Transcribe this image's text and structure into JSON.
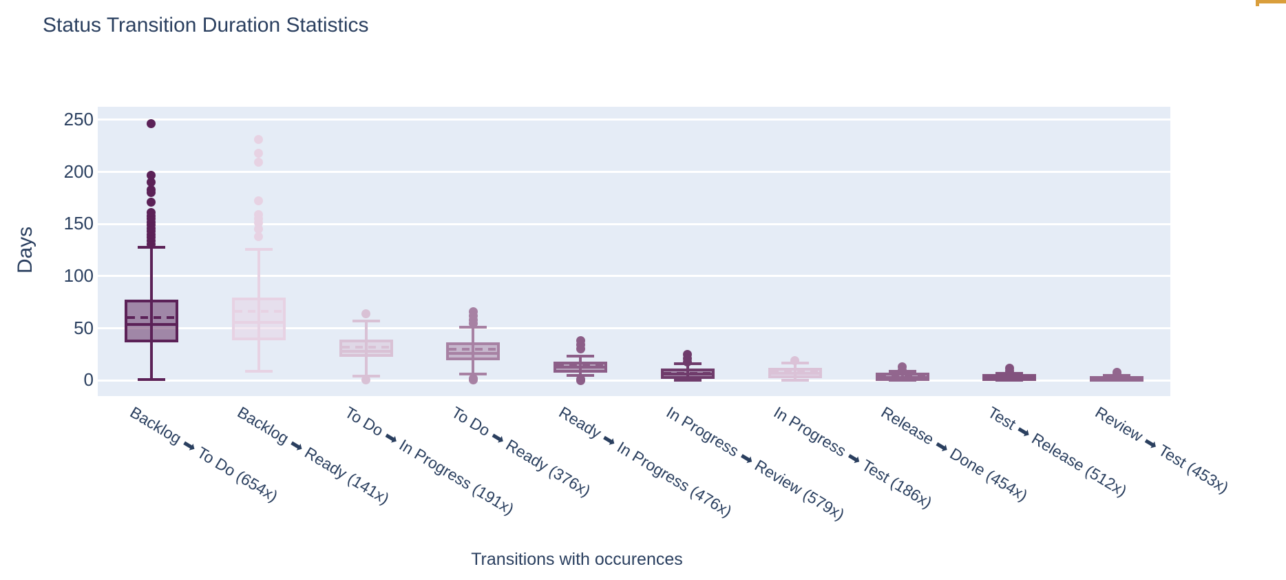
{
  "page": {
    "background": "#ffffff"
  },
  "decoration": {
    "orange_corner_color": "#d99e3c"
  },
  "chart_data": {
    "type": "box",
    "title": "Status Transition Duration Statistics",
    "xlabel": "Transitions with occurences",
    "ylabel": "Days",
    "yticks": [
      0,
      50,
      100,
      150,
      200,
      250
    ],
    "ylim": [
      -15,
      262.5
    ],
    "grid": true,
    "legend": "none",
    "plot_bg": "#e5ecf6",
    "grid_color": "#ffffff",
    "font_color": "#2a3f5f",
    "fill_alpha": 0.5,
    "arrow_glyph": "➡",
    "series": [
      {
        "label": "Backlog ➡ To Do (654x)",
        "from": "Backlog",
        "to": "To Do",
        "occurrences": 654,
        "color": "#5b2157",
        "whisker_low": 1,
        "q1": 38,
        "median": 54,
        "mean": 60,
        "q3": 76,
        "whisker_high": 128,
        "outliers": [
          131,
          134,
          137,
          140,
          143,
          146,
          149,
          152,
          155,
          158,
          161,
          171,
          180,
          183,
          190,
          197,
          246
        ]
      },
      {
        "label": "Backlog ➡ Ready (141x)",
        "from": "Backlog",
        "to": "Ready",
        "occurrences": 141,
        "color": "#e7d2e3",
        "whisker_low": 9,
        "q1": 40,
        "median": 56,
        "mean": 66,
        "q3": 78,
        "whisker_high": 126,
        "outliers": [
          138,
          145,
          151,
          155,
          159,
          172,
          209,
          218,
          231
        ]
      },
      {
        "label": "To Do ➡ In Progress (191x)",
        "from": "To Do",
        "to": "In Progress",
        "occurrences": 191,
        "color": "#d9c1d5",
        "whisker_low": 4,
        "q1": 24,
        "median": 28,
        "mean": 32,
        "q3": 38,
        "whisker_high": 57,
        "outliers": [
          64,
          0.5
        ]
      },
      {
        "label": "To Do ➡ Ready (376x)",
        "from": "To Do",
        "to": "Ready",
        "occurrences": 376,
        "color": "#a781a3",
        "whisker_low": 6,
        "q1": 21,
        "median": 26,
        "mean": 30,
        "q3": 35,
        "whisker_high": 51,
        "outliers": [
          66,
          62,
          58,
          55,
          2,
          0.5
        ]
      },
      {
        "label": "Ready ➡ In Progress (476x)",
        "from": "Ready",
        "to": "In Progress",
        "occurrences": 476,
        "color": "#8c5e88",
        "whisker_low": 5,
        "q1": 9,
        "median": 13,
        "mean": 14,
        "q3": 17,
        "whisker_high": 23,
        "outliers": [
          38,
          34,
          30,
          1,
          0
        ]
      },
      {
        "label": "In Progress ➡ Review (579x)",
        "from": "In Progress",
        "to": "Review",
        "occurrences": 579,
        "color": "#6f3b6b",
        "whisker_low": 0,
        "q1": 3,
        "median": 6,
        "mean": 7,
        "q3": 10,
        "whisker_high": 16,
        "outliers": [
          25,
          21,
          18
        ]
      },
      {
        "label": "In Progress ➡ Test (186x)",
        "from": "In Progress",
        "to": "Test",
        "occurrences": 186,
        "color": "#dbc2d7",
        "whisker_low": 0,
        "q1": 3.5,
        "median": 7,
        "mean": 8,
        "q3": 11,
        "whisker_high": 16.5,
        "outliers": [
          19
        ]
      },
      {
        "label": "Release ➡ Done (454x)",
        "from": "Release",
        "to": "Done",
        "occurrences": 454,
        "color": "#92668e",
        "whisker_low": 0,
        "q1": 1,
        "median": 3,
        "mean": 4,
        "q3": 6,
        "whisker_high": 9,
        "outliers": [
          13,
          10
        ]
      },
      {
        "label": "Test ➡ Release (512x)",
        "from": "Test",
        "to": "Release",
        "occurrences": 512,
        "color": "#82527e",
        "whisker_low": 0,
        "q1": 1,
        "median": 2,
        "mean": 3,
        "q3": 5,
        "whisker_high": 7,
        "outliers": [
          12,
          9
        ]
      },
      {
        "label": "Review ➡ Test (453x)",
        "from": "Review",
        "to": "Test",
        "occurrences": 453,
        "color": "#92668e",
        "whisker_low": 0,
        "q1": 0.5,
        "median": 1.5,
        "mean": 2,
        "q3": 3,
        "whisker_high": 5,
        "outliers": [
          7.5,
          5.5
        ]
      }
    ]
  }
}
